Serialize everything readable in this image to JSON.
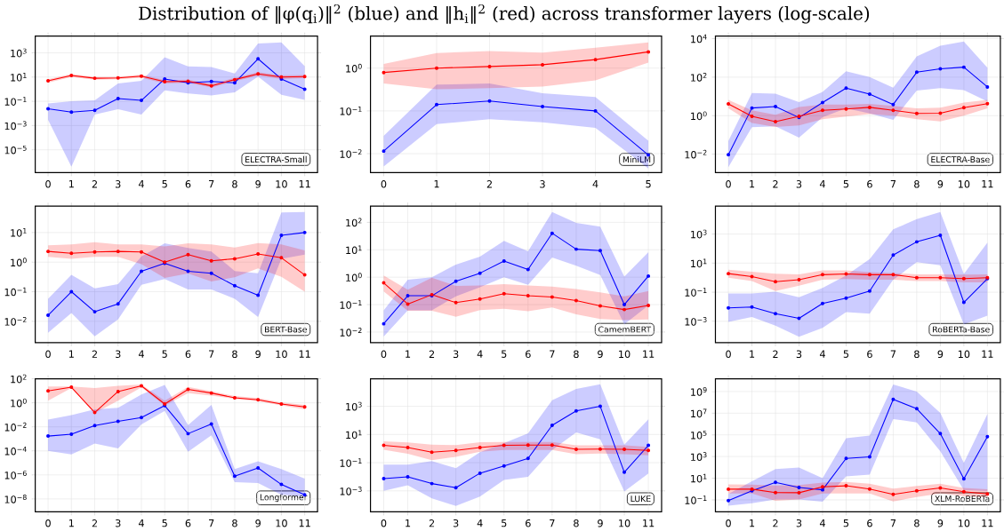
{
  "chart_data": [
    {
      "type": "line",
      "title": "Distribution of ‖φ(q$_{i}$)‖$^{2}$ (blue) and ‖h$_{i}$‖$^{2}$ (red) across transformer layers (log-scale)",
      "x": [
        0,
        1,
        2,
        3,
        4,
        5,
        6,
        7,
        8,
        9,
        10,
        11
      ],
      "xlim": [
        -0.55,
        11.55
      ],
      "xticks": [
        0,
        1,
        2,
        3,
        4,
        5,
        6,
        7,
        8,
        9,
        10,
        11
      ],
      "ylim": [
        1.3e-07,
        24000
      ],
      "yticks": [
        {
          "value": 1e-05,
          "label": "10$^{−5}$"
        },
        {
          "value": 0.001,
          "label": "10$^{−3}$"
        },
        {
          "value": 0.1,
          "label": "10$^{−1}$"
        },
        {
          "value": 10,
          "label": "10$^{1}$"
        },
        {
          "value": 1000,
          "label": "10$^{3}$"
        }
      ],
      "log": true,
      "grid": true,
      "marker": "circle",
      "annotations": [
        "ELECTRA-Small"
      ],
      "series": [
        {
          "color": "#0000ff",
          "values": [
            0.024,
            0.013,
            0.018,
            0.17,
            0.12,
            7,
            3.4,
            4.3,
            3.4,
            320,
            7,
            1.0
          ],
          "lower": [
            0.003,
            4e-07,
            0.008,
            0.022,
            0.008,
            0.8,
            0.45,
            0.3,
            0.55,
            11,
            0.35,
            0.13
          ],
          "upper": [
            0.066,
            0.1,
            0.12,
            3,
            5,
            430,
            76,
            68,
            20,
            6000,
            7200,
            80
          ]
        },
        {
          "color": "#ff0000",
          "values": [
            4.9,
            13.5,
            8,
            8.5,
            12,
            4.1,
            4.6,
            1.9,
            6.2,
            18,
            10,
            11
          ],
          "lower": [
            3.5,
            10,
            6,
            6.5,
            9,
            3,
            3.3,
            1.4,
            4.5,
            13,
            7,
            8
          ],
          "upper": [
            6.5,
            18,
            10,
            10.5,
            16,
            5.5,
            6,
            2.7,
            8.5,
            25,
            14,
            15
          ]
        }
      ]
    },
    {
      "type": "line",
      "x": [
        0,
        1,
        2,
        3,
        4,
        5
      ],
      "xlim": [
        -0.25,
        5.25
      ],
      "xticks": [
        0,
        1,
        2,
        3,
        4,
        5
      ],
      "ylim": [
        0.0036,
        5.6
      ],
      "yticks": [
        {
          "value": 0.01,
          "label": "10$^{−2}$"
        },
        {
          "value": 0.1,
          "label": "10$^{−1}$"
        },
        {
          "value": 1,
          "label": "10$^{0}$"
        }
      ],
      "log": true,
      "grid": true,
      "marker": "circle",
      "annotations": [
        "MiniLM"
      ],
      "series": [
        {
          "color": "#0000ff",
          "values": [
            0.0115,
            0.14,
            0.17,
            0.126,
            0.1,
            0.0093
          ],
          "lower": [
            0.005,
            0.049,
            0.064,
            0.054,
            0.04,
            0.0045
          ],
          "upper": [
            0.026,
            0.41,
            0.44,
            0.26,
            0.21,
            0.02
          ]
        },
        {
          "color": "#ff0000",
          "values": [
            0.79,
            1.0,
            1.09,
            1.2,
            1.58,
            2.4
          ],
          "lower": [
            0.44,
            0.32,
            0.34,
            0.37,
            0.52,
            1.35
          ],
          "upper": [
            1.25,
            2.25,
            2.5,
            2.3,
            3,
            4
          ]
        }
      ]
    },
    {
      "type": "line",
      "x": [
        0,
        1,
        2,
        3,
        4,
        5,
        6,
        7,
        8,
        9,
        10,
        11
      ],
      "xlim": [
        -0.55,
        11.55
      ],
      "xticks": [
        0,
        1,
        2,
        3,
        4,
        5,
        6,
        7,
        8,
        9,
        10,
        11
      ],
      "ylim": [
        0.0011,
        13500
      ],
      "yticks": [
        {
          "value": 0.01,
          "label": "10$^{−2}$"
        },
        {
          "value": 1,
          "label": "10$^{0}$"
        },
        {
          "value": 100,
          "label": "10$^{2}$"
        },
        {
          "value": 10000,
          "label": "10$^{4}$"
        }
      ],
      "log": true,
      "grid": true,
      "marker": "circle",
      "annotations": [
        "ELECTRA-Base"
      ],
      "series": [
        {
          "color": "#0000ff",
          "values": [
            0.0093,
            2.5,
            3,
            0.8,
            4.8,
            27,
            13,
            3.8,
            180,
            270,
            330,
            31
          ],
          "lower": [
            0.0021,
            0.25,
            0.28,
            0.072,
            0.83,
            2.4,
            1.3,
            0.6,
            20,
            27,
            21,
            5.5
          ],
          "upper": [
            0.048,
            15,
            14,
            5,
            17,
            200,
            100,
            28,
            1200,
            4300,
            7100,
            310
          ]
        },
        {
          "color": "#ff0000",
          "values": [
            4.1,
            0.93,
            0.49,
            0.93,
            1.9,
            2.2,
            2.7,
            1.9,
            1.3,
            1.35,
            2.6,
            4.2
          ],
          "lower": [
            2.4,
            0.42,
            0.26,
            0.31,
            0.66,
            0.9,
            1.2,
            1.0,
            0.66,
            0.5,
            1.0,
            2.4
          ],
          "upper": [
            6.5,
            1.9,
            1.1,
            2.8,
            3.8,
            3.8,
            4.1,
            3.2,
            2.4,
            2.6,
            4.8,
            6.5
          ]
        }
      ]
    },
    {
      "type": "line",
      "x": [
        0,
        1,
        2,
        3,
        4,
        5,
        6,
        7,
        8,
        9,
        10,
        11
      ],
      "xlim": [
        -0.55,
        11.55
      ],
      "xticks": [
        0,
        1,
        2,
        3,
        4,
        5,
        6,
        7,
        8,
        9,
        10,
        11
      ],
      "ylim": [
        0.0019,
        78
      ],
      "yticks": [
        {
          "value": 0.01,
          "label": "10$^{−2}$"
        },
        {
          "value": 0.1,
          "label": "10$^{−1}$"
        },
        {
          "value": 1,
          "label": "10$^{0}$"
        },
        {
          "value": 10,
          "label": "10$^{1}$"
        }
      ],
      "log": true,
      "grid": true,
      "marker": "circle",
      "annotations": [
        "BERT-Base"
      ],
      "series": [
        {
          "color": "#0000ff",
          "values": [
            0.016,
            0.1,
            0.021,
            0.039,
            0.49,
            0.91,
            0.49,
            0.42,
            0.16,
            0.076,
            8,
            10
          ],
          "lower": [
            0.0041,
            0.019,
            0.0031,
            0.0115,
            0.17,
            0.27,
            0.12,
            0.12,
            0.058,
            0.014,
            1.3,
            1.8
          ],
          "upper": [
            0.058,
            0.37,
            0.13,
            0.18,
            1.55,
            4.3,
            3,
            2.3,
            0.5,
            0.42,
            48,
            49
          ]
        },
        {
          "color": "#ff0000",
          "values": [
            2.3,
            2.0,
            2.2,
            2.3,
            2.2,
            1.0,
            1.8,
            1.1,
            1.3,
            1.9,
            1.4,
            0.37
          ],
          "lower": [
            1.5,
            1.3,
            1.5,
            1.5,
            0.86,
            0.29,
            0.41,
            0.22,
            0.31,
            0.61,
            0.32,
            0.1
          ],
          "upper": [
            3.7,
            4,
            4.7,
            4,
            4,
            3.4,
            4.3,
            4,
            3.1,
            4.4,
            4,
            2.5
          ]
        }
      ]
    },
    {
      "type": "line",
      "x": [
        0,
        1,
        2,
        3,
        4,
        5,
        6,
        7,
        8,
        9,
        10,
        11
      ],
      "xlim": [
        -0.55,
        11.55
      ],
      "xticks": [
        0,
        1,
        2,
        3,
        4,
        5,
        6,
        7,
        8,
        9,
        10,
        11
      ],
      "ylim": [
        0.0041,
        390
      ],
      "yticks": [
        {
          "value": 0.01,
          "label": "10$^{−2}$"
        },
        {
          "value": 0.1,
          "label": "10$^{−1}$"
        },
        {
          "value": 1,
          "label": "10$^{0}$"
        },
        {
          "value": 10,
          "label": "10$^{1}$"
        },
        {
          "value": 100,
          "label": "10$^{2}$"
        }
      ],
      "log": true,
      "grid": true,
      "marker": "circle",
      "annotations": [
        "CamemBERT"
      ],
      "series": [
        {
          "color": "#0000ff",
          "values": [
            0.02,
            0.21,
            0.21,
            0.71,
            1.4,
            3.9,
            1.9,
            40,
            10.5,
            9.3,
            0.1,
            1.1
          ],
          "lower": [
            0.0069,
            0.062,
            0.062,
            0.2,
            0.43,
            1.0,
            0.53,
            5.2,
            2.6,
            1.2,
            0.019,
            0.093
          ],
          "upper": [
            0.062,
            0.81,
            1.0,
            2.9,
            5.6,
            21,
            8.8,
            240,
            95,
            69,
            1.05,
            8.1
          ]
        },
        {
          "color": "#ff0000",
          "values": [
            0.62,
            0.105,
            0.23,
            0.118,
            0.16,
            0.25,
            0.21,
            0.19,
            0.14,
            0.09,
            0.066,
            0.093
          ],
          "lower": [
            0.3,
            0.059,
            0.06,
            0.036,
            0.063,
            0.071,
            0.057,
            0.079,
            0.044,
            0.03,
            0.027,
            0.029
          ],
          "upper": [
            1.15,
            0.35,
            0.95,
            0.48,
            0.5,
            0.56,
            0.5,
            0.45,
            0.37,
            0.28,
            0.2,
            0.31
          ]
        }
      ]
    },
    {
      "type": "line",
      "x": [
        0,
        1,
        2,
        3,
        4,
        5,
        6,
        7,
        8,
        9,
        10,
        11
      ],
      "xlim": [
        -0.55,
        11.55
      ],
      "xticks": [
        0,
        1,
        2,
        3,
        4,
        5,
        6,
        7,
        8,
        9,
        10,
        11
      ],
      "ylim": [
        3.4e-05,
        83000
      ],
      "yticks": [
        {
          "value": 0.001,
          "label": "10$^{−3}$"
        },
        {
          "value": 0.1,
          "label": "10$^{−1}$"
        },
        {
          "value": 10,
          "label": "10$^{1}$"
        },
        {
          "value": 1000,
          "label": "10$^{3}$"
        }
      ],
      "log": true,
      "grid": true,
      "marker": "circle",
      "annotations": [
        "RoBERTa-Base"
      ],
      "series": [
        {
          "color": "#0000ff",
          "values": [
            0.0083,
            0.0096,
            0.0033,
            0.0016,
            0.017,
            0.039,
            0.12,
            36,
            290,
            820,
            0.02,
            0.85
          ],
          "lower": [
            0.0009,
            0.002,
            0.0005,
            8.7e-05,
            0.00035,
            0.0043,
            0.0033,
            0.73,
            11.5,
            7,
            0.00063,
            0.0024
          ],
          "upper": [
            0.082,
            0.082,
            0.11,
            0.045,
            0.2,
            1.4,
            19,
            2100,
            10500,
            33000,
            1.8,
            260
          ]
        },
        {
          "color": "#ff0000",
          "values": [
            1.9,
            1.2,
            0.53,
            0.72,
            1.6,
            1.8,
            1.6,
            1.6,
            1.0,
            1.0,
            0.87,
            1.0
          ],
          "lower": [
            1.0,
            0.58,
            0.12,
            0.28,
            0.72,
            0.79,
            0.72,
            0.72,
            0.58,
            0.58,
            0.48,
            0.48
          ],
          "upper": [
            3.5,
            2.6,
            1.9,
            1.7,
            3.2,
            3.2,
            2.4,
            2.1,
            1.7,
            1.7,
            1.6,
            1.7
          ]
        }
      ]
    },
    {
      "type": "line",
      "x": [
        0,
        1,
        2,
        3,
        4,
        5,
        6,
        7,
        8,
        9,
        10,
        11
      ],
      "xlim": [
        -0.55,
        11.55
      ],
      "xticks": [
        0,
        1,
        2,
        3,
        4,
        5,
        6,
        7,
        8,
        9,
        10,
        11
      ],
      "ylim": [
        8.5e-10,
        100
      ],
      "yticks": [
        {
          "value": 1e-08,
          "label": "10$^{−8}$"
        },
        {
          "value": 1e-06,
          "label": "10$^{−6}$"
        },
        {
          "value": 0.0001,
          "label": "10$^{−4}$"
        },
        {
          "value": 0.01,
          "label": "10$^{−2}$"
        },
        {
          "value": 1,
          "label": "10$^{0}$"
        },
        {
          "value": 100,
          "label": "10$^{2}$"
        }
      ],
      "log": true,
      "grid": true,
      "marker": "circle",
      "annotations": [
        "Longformer"
      ],
      "series": [
        {
          "color": "#0000ff",
          "values": [
            0.0017,
            0.0024,
            0.0126,
            0.029,
            0.059,
            0.58,
            0.0027,
            0.017,
            7.9e-07,
            3.8e-06,
            1.6e-07,
            2.2e-08
          ],
          "lower": [
            0.0001,
            5e-05,
            0.0004,
            0.00016,
            0.016,
            0.21,
            8.3e-05,
            0.002,
            2.5e-07,
            2.1e-07,
            2.2e-08,
            1.6e-08
          ],
          "upper": [
            0.041,
            0.093,
            0.28,
            0.38,
            4.9,
            31,
            0.014,
            0.66,
            3e-06,
            1.35e-05,
            3e-06,
            5e-07
          ]
        },
        {
          "color": "#ff0000",
          "values": [
            9.8,
            20,
            0.155,
            8.7,
            26,
            0.79,
            13,
            6.5,
            2.6,
            1.8,
            0.79,
            0.46
          ],
          "lower": [
            1.5,
            17,
            0.14,
            1.5,
            19,
            0.58,
            6.5,
            4,
            2.1,
            1.4,
            0.62,
            0.28
          ],
          "upper": [
            23,
            23,
            17,
            26,
            34,
            1.5,
            21,
            9.3,
            3.6,
            2.5,
            1.07,
            0.66
          ]
        }
      ]
    },
    {
      "type": "line",
      "x": [
        0,
        1,
        2,
        3,
        4,
        5,
        6,
        7,
        8,
        9,
        10,
        11
      ],
      "xlim": [
        -0.55,
        11.55
      ],
      "xticks": [
        0,
        1,
        2,
        3,
        4,
        5,
        6,
        7,
        8,
        9,
        10,
        11
      ],
      "ylim": [
        3.3e-05,
        90000
      ],
      "yticks": [
        {
          "value": 0.001,
          "label": "10$^{−3}$"
        },
        {
          "value": 0.1,
          "label": "10$^{−1}$"
        },
        {
          "value": 10,
          "label": "10$^{1}$"
        },
        {
          "value": 1000,
          "label": "10$^{3}$"
        }
      ],
      "log": true,
      "grid": true,
      "marker": "circle",
      "annotations": [
        "LUKE"
      ],
      "series": [
        {
          "color": "#0000ff",
          "values": [
            0.0074,
            0.01,
            0.0033,
            0.0017,
            0.018,
            0.058,
            0.2,
            45,
            470,
            1000,
            0.021,
            1.7
          ],
          "lower": [
            0.001,
            0.0025,
            0.0003,
            8.6e-05,
            0.0004,
            0.006,
            0.01,
            0.81,
            14,
            4.5,
            0.0009,
            0.017
          ],
          "upper": [
            0.074,
            0.074,
            0.13,
            0.041,
            0.55,
            2.5,
            12,
            2700,
            17000,
            37000,
            1.9,
            120
          ]
        },
        {
          "color": "#ff0000",
          "values": [
            1.7,
            1.2,
            0.55,
            0.74,
            1.2,
            1.7,
            1.8,
            1.8,
            0.9,
            0.92,
            0.9,
            0.74
          ],
          "lower": [
            0.82,
            0.43,
            0.15,
            0.26,
            0.6,
            0.8,
            0.8,
            0.8,
            0.4,
            0.45,
            0.4,
            0.33
          ],
          "upper": [
            3.3,
            2.7,
            1.9,
            1.8,
            2.9,
            3,
            3,
            3,
            1.7,
            1.7,
            1.7,
            1.35
          ]
        }
      ]
    },
    {
      "type": "line",
      "x": [
        0,
        1,
        2,
        3,
        4,
        5,
        6,
        7,
        8,
        9,
        10,
        11
      ],
      "xlim": [
        -0.55,
        11.55
      ],
      "xticks": [
        0,
        1,
        2,
        3,
        4,
        5,
        6,
        7,
        8,
        9,
        10,
        11
      ],
      "ylim": [
        0.008,
        15000000000.0
      ],
      "yticks": [
        {
          "value": 0.1,
          "label": "10$^{−1}$"
        },
        {
          "value": 10,
          "label": "10$^{1}$"
        },
        {
          "value": 1000,
          "label": "10$^{3}$"
        },
        {
          "value": 100000,
          "label": "10$^{5}$"
        },
        {
          "value": 10000000.0,
          "label": "10$^{7}$"
        },
        {
          "value": 1000000000.0,
          "label": "10$^{9}$"
        }
      ],
      "log": true,
      "grid": true,
      "marker": "circle",
      "annotations": [
        "XLM-RoBERTa"
      ],
      "series": [
        {
          "color": "#0000ff",
          "values": [
            0.087,
            0.7,
            4.1,
            1.4,
            0.85,
            680,
            930,
            190000000.0,
            26000000.0,
            130000,
            8.7,
            68000
          ],
          "lower": [
            0.029,
            0.049,
            0.11,
            0.11,
            0.068,
            15,
            22,
            2900000.0,
            1400000.0,
            3000,
            0.79,
            0.66
          ],
          "upper": [
            0.35,
            5.2,
            70,
            97,
            10,
            49000,
            87000,
            4500000000.0,
            1000000000.0,
            10700000.0,
            260,
            8300000.0
          ]
        },
        {
          "color": "#ff0000",
          "values": [
            0.98,
            0.98,
            0.48,
            0.46,
            1.6,
            2.0,
            1.0,
            0.32,
            0.7,
            1.25,
            0.58,
            0.35
          ],
          "lower": [
            0.39,
            0.39,
            0.083,
            0.11,
            0.4,
            0.4,
            0.39,
            0.072,
            0.18,
            0.4,
            0.22,
            0.18
          ],
          "upper": [
            2.7,
            2.6,
            2.1,
            2.4,
            4,
            4.6,
            3.1,
            1.1,
            1.9,
            3.1,
            1.25,
            0.98
          ]
        }
      ]
    }
  ]
}
